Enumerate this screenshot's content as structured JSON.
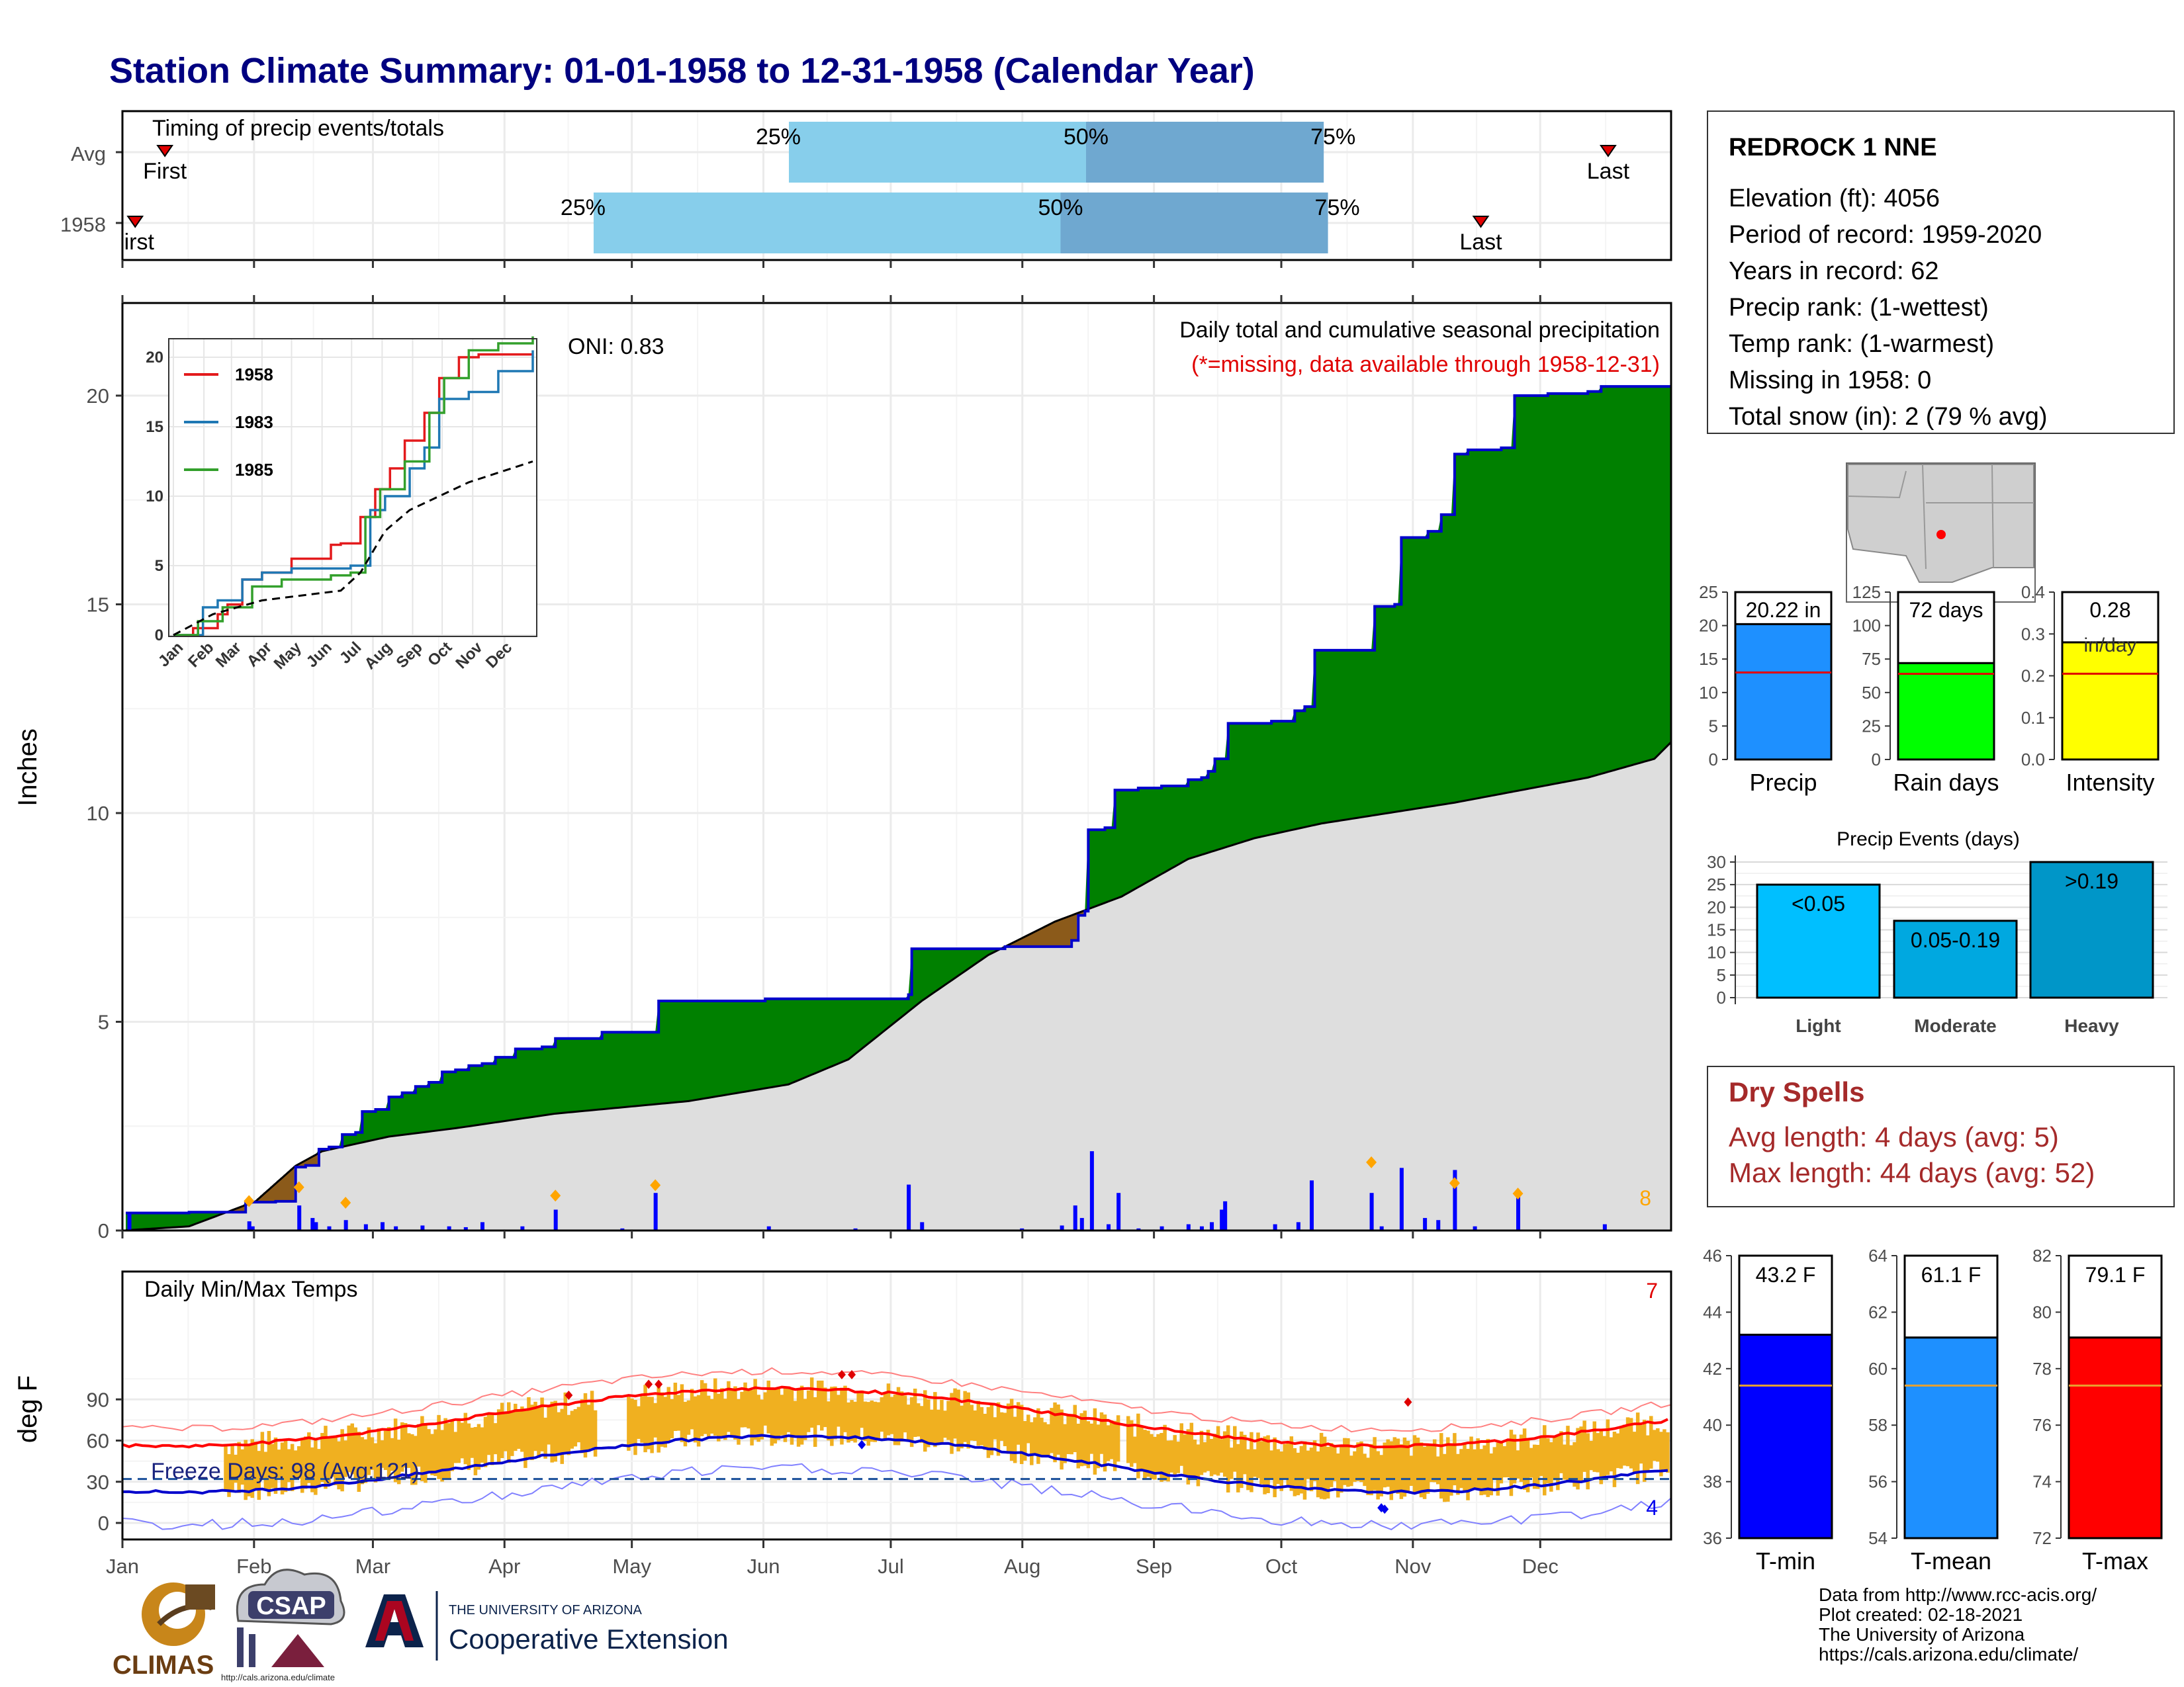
{
  "title": "Station Climate Summary: 01-01-1958 to 12-31-1958 (Calendar Year)",
  "months": [
    "Jan",
    "Feb",
    "Mar",
    "Apr",
    "May",
    "Jun",
    "Jul",
    "Aug",
    "Sep",
    "Oct",
    "Nov",
    "Dec"
  ],
  "timing": {
    "label": "Timing of precip events/totals",
    "rows": [
      {
        "name": "Avg",
        "p25_label": "25%",
        "p50_label": "50%",
        "p75_label": "75%",
        "p25_day": 157,
        "p50_day": 227,
        "p75_day": 283,
        "first_label": "First",
        "first_day": 10,
        "last_label": "Last",
        "last_day": 350
      },
      {
        "name": "1958",
        "p25_label": "25%",
        "p50_label": "50%",
        "p75_label": "75%",
        "p25_day": 111,
        "p50_day": 221,
        "p75_day": 284,
        "first_label": "irst",
        "first_day": 3,
        "last_label": "Last",
        "last_day": 320
      }
    ]
  },
  "precip": {
    "subtitle": "Daily total and cumulative seasonal precipitation",
    "note": "(*=missing, data available through 1958-12-31)",
    "oni": "ONI: 0.83",
    "ylabel": "Inches",
    "yticks": [
      "0",
      "5",
      "10",
      "15",
      "20"
    ],
    "corner_count": "8",
    "ylim": [
      0,
      22
    ],
    "cumulative_1958_steps": [
      [
        1,
        0.42
      ],
      [
        19,
        0.42
      ],
      [
        20,
        0.44
      ],
      [
        36,
        0.44
      ],
      [
        37,
        0.68
      ],
      [
        46,
        0.7
      ],
      [
        52,
        1.52
      ],
      [
        55,
        1.56
      ],
      [
        59,
        1.95
      ],
      [
        62,
        2.0
      ],
      [
        66,
        2.3
      ],
      [
        70,
        2.35
      ],
      [
        72,
        2.85
      ],
      [
        76,
        2.9
      ],
      [
        80,
        3.2
      ],
      [
        84,
        3.3
      ],
      [
        88,
        3.45
      ],
      [
        92,
        3.55
      ],
      [
        96,
        3.8
      ],
      [
        100,
        3.85
      ],
      [
        104,
        3.95
      ],
      [
        108,
        4.0
      ],
      [
        112,
        4.15
      ],
      [
        118,
        4.35
      ],
      [
        126,
        4.4
      ],
      [
        130,
        4.6
      ],
      [
        143,
        4.6
      ],
      [
        144,
        4.75
      ],
      [
        160,
        4.75
      ],
      [
        161,
        5.5
      ],
      [
        192,
        5.5
      ],
      [
        193,
        5.55
      ],
      [
        220,
        5.55
      ],
      [
        236,
        5.65
      ],
      [
        237,
        6.75
      ],
      [
        264,
        6.75
      ],
      [
        265,
        6.8
      ],
      [
        281,
        6.8
      ],
      [
        285,
        6.95
      ],
      [
        287,
        7.55
      ],
      [
        289,
        7.65
      ],
      [
        290,
        9.6
      ],
      [
        295,
        9.65
      ],
      [
        298,
        10.55
      ],
      [
        305,
        10.6
      ],
      [
        312,
        10.65
      ],
      [
        320,
        10.8
      ],
      [
        324,
        10.85
      ],
      [
        326,
        11.0
      ],
      [
        328,
        11.3
      ],
      [
        332,
        12.15
      ],
      [
        345,
        12.2
      ],
      [
        352,
        12.45
      ],
      [
        355,
        12.55
      ],
      [
        358,
        13.9
      ],
      [
        372,
        13.9
      ],
      [
        376,
        14.95
      ],
      [
        382,
        15.0
      ],
      [
        384,
        16.6
      ],
      [
        392,
        16.75
      ],
      [
        396,
        17.15
      ],
      [
        400,
        18.6
      ],
      [
        404,
        18.7
      ],
      [
        414,
        18.75
      ],
      [
        418,
        20.0
      ],
      [
        428,
        20.05
      ],
      [
        440,
        20.1
      ],
      [
        444,
        20.22
      ],
      [
        465,
        20.22
      ]
    ],
    "avg_cum_points": [
      [
        0,
        0
      ],
      [
        20,
        0.1
      ],
      [
        40,
        0.7
      ],
      [
        52,
        1.55
      ],
      [
        60,
        1.9
      ],
      [
        80,
        2.25
      ],
      [
        100,
        2.45
      ],
      [
        130,
        2.8
      ],
      [
        150,
        2.95
      ],
      [
        170,
        3.1
      ],
      [
        185,
        3.3
      ],
      [
        200,
        3.5
      ],
      [
        218,
        4.1
      ],
      [
        240,
        5.5
      ],
      [
        260,
        6.6
      ],
      [
        280,
        7.4
      ],
      [
        300,
        8.0
      ],
      [
        320,
        8.9
      ],
      [
        340,
        9.4
      ],
      [
        360,
        9.75
      ],
      [
        380,
        10.0
      ],
      [
        400,
        10.25
      ],
      [
        420,
        10.55
      ],
      [
        440,
        10.85
      ],
      [
        460,
        11.3
      ],
      [
        465,
        11.7
      ]
    ],
    "daily_bars": [
      [
        2,
        0.4
      ],
      [
        38,
        0.22
      ],
      [
        39,
        0.1
      ],
      [
        53,
        0.6
      ],
      [
        57,
        0.3
      ],
      [
        58,
        0.2
      ],
      [
        62,
        0.1
      ],
      [
        67,
        0.25
      ],
      [
        73,
        0.15
      ],
      [
        78,
        0.2
      ],
      [
        82,
        0.1
      ],
      [
        90,
        0.12
      ],
      [
        98,
        0.1
      ],
      [
        103,
        0.08
      ],
      [
        108,
        0.2
      ],
      [
        120,
        0.1
      ],
      [
        130,
        0.5
      ],
      [
        150,
        0.05
      ],
      [
        160,
        0.9
      ],
      [
        194,
        0.1
      ],
      [
        220,
        0.05
      ],
      [
        236,
        1.1
      ],
      [
        240,
        0.2
      ],
      [
        270,
        0.05
      ],
      [
        282,
        0.12
      ],
      [
        286,
        0.6
      ],
      [
        288,
        0.3
      ],
      [
        291,
        1.9
      ],
      [
        296,
        0.15
      ],
      [
        299,
        0.9
      ],
      [
        305,
        0.05
      ],
      [
        312,
        0.1
      ],
      [
        320,
        0.15
      ],
      [
        324,
        0.1
      ],
      [
        327,
        0.2
      ],
      [
        330,
        0.5
      ],
      [
        331,
        0.7
      ],
      [
        346,
        0.15
      ],
      [
        353,
        0.2
      ],
      [
        357,
        1.2
      ],
      [
        375,
        0.9
      ],
      [
        378,
        0.1
      ],
      [
        384,
        1.5
      ],
      [
        391,
        0.3
      ],
      [
        395,
        0.25
      ],
      [
        400,
        1.45
      ],
      [
        406,
        0.1
      ],
      [
        419,
        0.85
      ],
      [
        445,
        0.15
      ]
    ]
  },
  "inset": {
    "legend": [
      {
        "name": "1958",
        "color": "#e31a1c"
      },
      {
        "name": "1983",
        "color": "#1f78b4"
      },
      {
        "name": "1985",
        "color": "#33a02c"
      }
    ],
    "yticks": [
      "0",
      "5",
      "10",
      "15",
      "20"
    ],
    "months": [
      "Jan",
      "Feb",
      "Mar",
      "Apr",
      "May",
      "Jun",
      "Jul",
      "Aug",
      "Sep",
      "Oct",
      "Nov",
      "Dec"
    ]
  },
  "temps": {
    "label": "Daily Min/Max Temps",
    "ylabel": "deg F",
    "yticks": [
      "0",
      "30",
      "60",
      "90"
    ],
    "freeze_label": "Freeze Days: 98 (Avg:121)",
    "top_count": "7",
    "bottom_count": "4",
    "ylim": [
      -10,
      115
    ]
  },
  "station": {
    "name": "REDROCK 1 NNE",
    "lines": [
      "Elevation (ft): 4056",
      "Period of record: 1959-2020",
      "Years in record: 62",
      "Precip rank:  (1-wettest)",
      "Temp rank:  (1-warmest)",
      "Missing in 1958: 0",
      "Total snow (in): 2 (79 % avg)"
    ]
  },
  "mini_bars": [
    {
      "name": "Precip",
      "value_label": "20.22 in",
      "value": 20.22,
      "avg": 13,
      "ymax": 25,
      "ticks": [
        "0",
        "5",
        "10",
        "15",
        "20",
        "25"
      ],
      "color": "#1e90ff"
    },
    {
      "name": "Rain days",
      "value_label": "72 days",
      "value": 72,
      "avg": 64,
      "ymax": 125,
      "ticks": [
        "0",
        "25",
        "50",
        "75",
        "100",
        "125"
      ],
      "color": "#00ff00"
    },
    {
      "name": "Intensity",
      "value_label": "0.28",
      "unit_label": "in/day",
      "value": 0.28,
      "avg": 0.205,
      "ymax": 0.4,
      "ticks": [
        "0.0",
        "0.1",
        "0.2",
        "0.3",
        "0.4"
      ],
      "color": "#ffff00"
    }
  ],
  "events": {
    "title": "Precip Events (days)",
    "ticks": [
      "0",
      "5",
      "10",
      "15",
      "20",
      "25",
      "30"
    ],
    "bars": [
      {
        "category": "Light",
        "label": "<0.05",
        "value": 25,
        "color": "#00bfff"
      },
      {
        "category": "Moderate",
        "label": "0.05-0.19",
        "value": 17,
        "color": "#00a8e0"
      },
      {
        "category": "Heavy",
        "label": ">0.19",
        "value": 30,
        "color": "#0096c8"
      }
    ]
  },
  "dry_spells": {
    "title": "Dry Spells",
    "avg_line": "Avg length: 4 days (avg: 5)",
    "max_line": "Max length: 44 days (avg: 52)"
  },
  "temp_bars": [
    {
      "name": "T-min",
      "value_label": "43.2 F",
      "value": 43.2,
      "avg": 41.4,
      "ymin": 36,
      "ymax": 46,
      "ticks": [
        "36",
        "38",
        "40",
        "42",
        "44",
        "46"
      ],
      "color": "#0000ff"
    },
    {
      "name": "T-mean",
      "value_label": "61.1 F",
      "value": 61.1,
      "avg": 59.4,
      "ymin": 54,
      "ymax": 64,
      "ticks": [
        "54",
        "56",
        "58",
        "60",
        "62",
        "64"
      ],
      "color": "#1e90ff"
    },
    {
      "name": "T-max",
      "value_label": "79.1 F",
      "value": 79.1,
      "avg": 77.4,
      "ymin": 72,
      "ymax": 82,
      "ticks": [
        "72",
        "74",
        "76",
        "78",
        "80",
        "82"
      ],
      "color": "#ff0000"
    }
  ],
  "footer": {
    "lines": [
      "Data from http://www.rcc-acis.org/",
      "Plot created: 02-18-2021",
      "The University of Arizona",
      "https://cals.arizona.edu/climate/"
    ],
    "logo_climas": "CLIMAS",
    "logo_csap": "CSAP",
    "logo_csap_url": "http://cals.arizona.edu/climate",
    "ua_line1": "THE UNIVERSITY OF ARIZONA",
    "ua_line2": "Cooperative Extension"
  }
}
